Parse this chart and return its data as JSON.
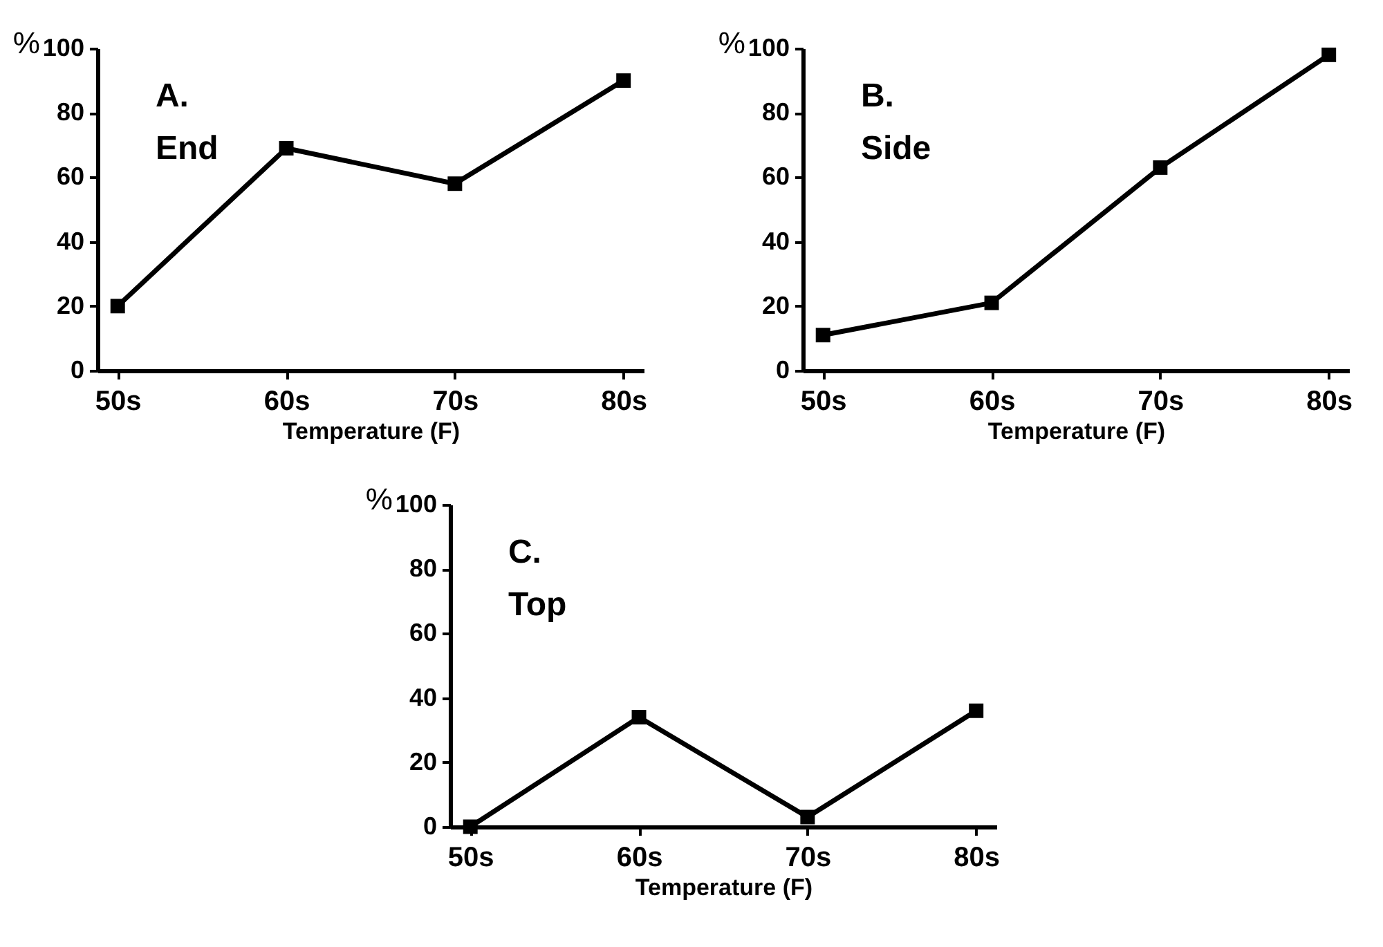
{
  "chart_data": [
    {
      "type": "line",
      "title": "A.",
      "subtitle": "End",
      "xlabel": "Temperature (F)",
      "ylabel": "%",
      "categories": [
        "50s",
        "60s",
        "70s",
        "80s"
      ],
      "series": [
        {
          "color": "#000000",
          "values": [
            20,
            69,
            58,
            90
          ]
        }
      ],
      "ylim": [
        0,
        100
      ],
      "yticks": [
        0,
        20,
        40,
        60,
        80,
        100
      ],
      "marker": "square",
      "line_style": "solid"
    },
    {
      "type": "line",
      "title": "B.",
      "subtitle": "Side",
      "xlabel": "Temperature (F)",
      "ylabel": "%",
      "categories": [
        "50s",
        "60s",
        "70s",
        "80s"
      ],
      "series": [
        {
          "color": "#000000",
          "values": [
            11,
            21,
            63,
            98
          ]
        }
      ],
      "ylim": [
        0,
        100
      ],
      "yticks": [
        0,
        20,
        40,
        60,
        80,
        100
      ],
      "marker": "square",
      "line_style": "solid"
    },
    {
      "type": "line",
      "title": "C.",
      "subtitle": "Top",
      "xlabel": "Temperature (F)",
      "ylabel": "%",
      "categories": [
        "50s",
        "60s",
        "70s",
        "80s"
      ],
      "series": [
        {
          "color": "#000000",
          "values": [
            0,
            34,
            3,
            36
          ]
        }
      ],
      "ylim": [
        0,
        100
      ],
      "yticks": [
        0,
        20,
        40,
        60,
        80,
        100
      ],
      "marker": "square",
      "line_style": "solid"
    }
  ]
}
